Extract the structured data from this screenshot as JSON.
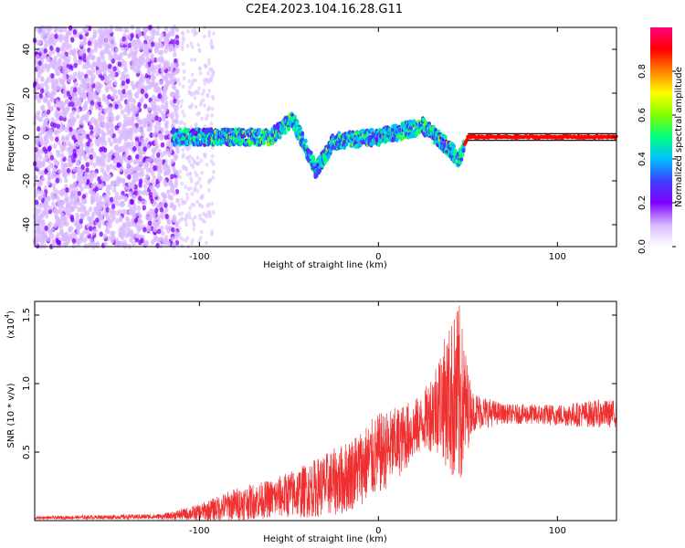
{
  "figure_title": "C2E4.2023.104.16.28.G11",
  "chart_data": [
    {
      "type": "heatmap",
      "xlabel": "Height of straight line (km)",
      "ylabel": "Frequency (Hz)",
      "xlim": [
        -192,
        133
      ],
      "ylim": [
        -50,
        50
      ],
      "xticks": [
        -100,
        0,
        100
      ],
      "yticks": [
        -40,
        -20,
        0,
        20,
        40
      ],
      "colorbar": {
        "label": "Normalized spectral amplitude",
        "range": [
          0,
          1
        ],
        "ticks": [
          "0.0",
          "0.2",
          "0.4",
          "0.6",
          "0.8"
        ],
        "colormap": [
          "#ffffff",
          "#d8b8ff",
          "#8000ff",
          "#4040ff",
          "#00c0ff",
          "#00ff80",
          "#80ff00",
          "#ffff00",
          "#ff8000",
          "#ff0000",
          "#ff0080"
        ]
      },
      "signal_track": [
        {
          "x": -115,
          "y": 0
        },
        {
          "x": -60,
          "y": 0
        },
        {
          "x": -48,
          "y": 8
        },
        {
          "x": -42,
          "y": -2
        },
        {
          "x": -35,
          "y": -15
        },
        {
          "x": -25,
          "y": -2
        },
        {
          "x": 0,
          "y": 0
        },
        {
          "x": 25,
          "y": 5
        },
        {
          "x": 38,
          "y": -4
        },
        {
          "x": 45,
          "y": -10
        },
        {
          "x": 50,
          "y": 0
        },
        {
          "x": 133,
          "y": 0
        }
      ]
    },
    {
      "type": "line",
      "xlabel": "Height of straight line (km)",
      "ylabel": "SNR (10 * v/v)",
      "multiplier_label": "(x10",
      "multiplier_exponent": "4",
      "xlim": [
        -192,
        133
      ],
      "ylim": [
        0,
        1.6
      ],
      "xticks": [
        -100,
        0,
        100
      ],
      "yticks": [
        "0.5",
        "1.0",
        "1.5"
      ],
      "color": "#f03030",
      "series": [
        {
          "envelope": [
            {
              "x": -192,
              "mean": 0.02,
              "amp": 0.01
            },
            {
              "x": -120,
              "mean": 0.03,
              "amp": 0.02
            },
            {
              "x": -100,
              "mean": 0.06,
              "amp": 0.06
            },
            {
              "x": -80,
              "mean": 0.12,
              "amp": 0.12
            },
            {
              "x": -60,
              "mean": 0.16,
              "amp": 0.14
            },
            {
              "x": -40,
              "mean": 0.22,
              "amp": 0.2
            },
            {
              "x": -20,
              "mean": 0.3,
              "amp": 0.26
            },
            {
              "x": 0,
              "mean": 0.48,
              "amp": 0.3
            },
            {
              "x": 12,
              "mean": 0.58,
              "amp": 0.26
            },
            {
              "x": 25,
              "mean": 0.72,
              "amp": 0.2
            },
            {
              "x": 35,
              "mean": 0.88,
              "amp": 0.4
            },
            {
              "x": 45,
              "mean": 0.88,
              "amp": 0.72
            },
            {
              "x": 52,
              "mean": 0.8,
              "amp": 0.15
            },
            {
              "x": 70,
              "mean": 0.78,
              "amp": 0.07
            },
            {
              "x": 100,
              "mean": 0.77,
              "amp": 0.08
            },
            {
              "x": 120,
              "mean": 0.78,
              "amp": 0.1
            },
            {
              "x": 133,
              "mean": 0.78,
              "amp": 0.1
            }
          ]
        }
      ]
    }
  ]
}
